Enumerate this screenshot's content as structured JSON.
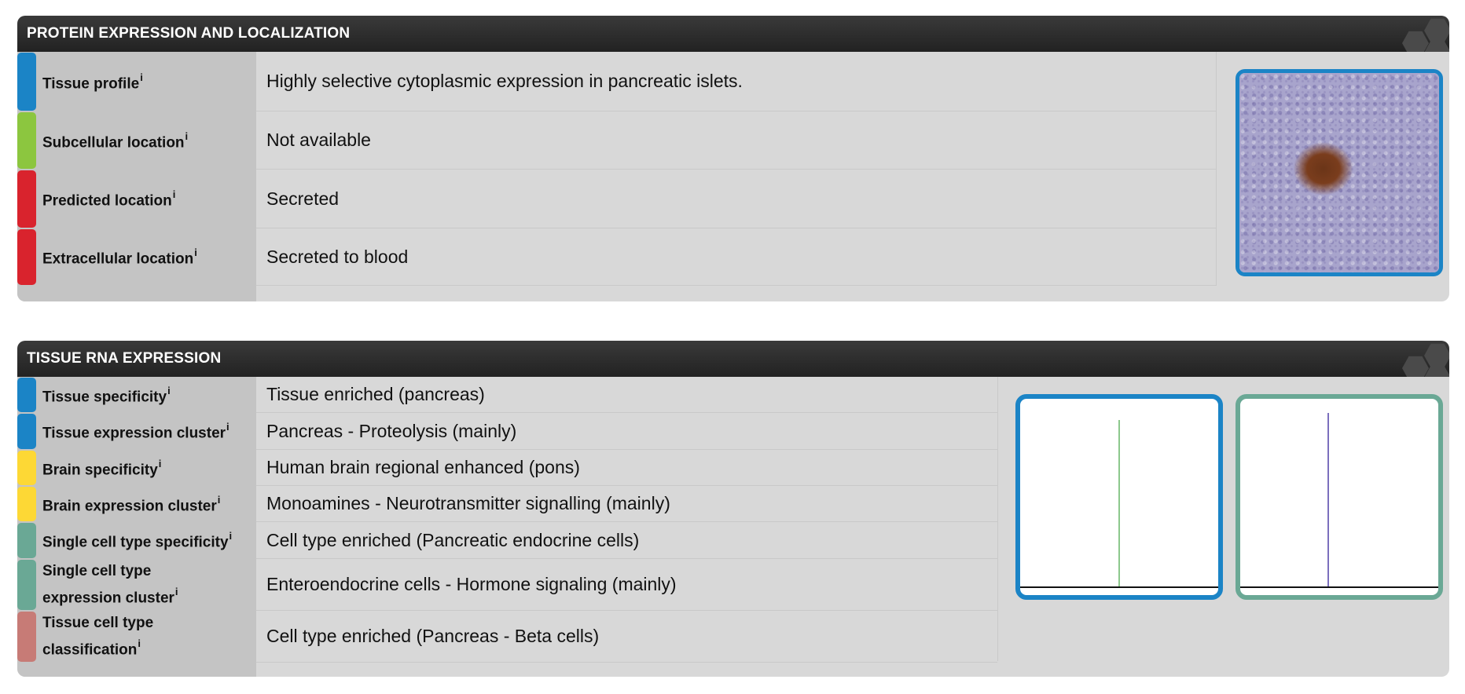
{
  "panels": {
    "protein": {
      "title": "PROTEIN EXPRESSION AND LOCALIZATION",
      "rows": [
        {
          "label": "Tissue profile",
          "info": "i",
          "value": "Highly selective cytoplasmic expression in pancreatic islets.",
          "color": "#1b84c6"
        },
        {
          "label": "Subcellular location",
          "info": "i",
          "value": "Not available",
          "color": "#8cc63f"
        },
        {
          "label": "Predicted location",
          "info": "i",
          "value": "Secreted",
          "color": "#d9232d"
        },
        {
          "label": "Extracellular location",
          "info": "i",
          "value": "Secreted to blood",
          "color": "#d9232d"
        }
      ]
    },
    "rna": {
      "title": "TISSUE RNA EXPRESSION",
      "rows": [
        {
          "label": "Tissue specificity",
          "info": "i",
          "value": "Tissue enriched (pancreas)",
          "color": "#1b84c6"
        },
        {
          "label": "Tissue expression cluster",
          "info": "i",
          "value": "Pancreas - Proteolysis (mainly)",
          "color": "#1b84c6"
        },
        {
          "label": "Brain specificity",
          "info": "i",
          "value": "Human brain regional enhanced (pons)",
          "color": "#fdd835"
        },
        {
          "label": "Brain expression cluster",
          "info": "i",
          "value": "Monoamines - Neurotransmitter signalling (mainly)",
          "color": "#fdd835"
        },
        {
          "label": "Single cell type specificity",
          "info": "i",
          "value": "Cell type enriched (Pancreatic endocrine cells)",
          "color": "#6aa895"
        },
        {
          "label_line1": "Single cell type",
          "label_line2": "expression cluster",
          "info": "i",
          "value": "Enteroendocrine cells - Hormone signaling (mainly)",
          "color": "#6aa895"
        },
        {
          "label_line1": "Tissue cell type",
          "label_line2": "classification",
          "info": "i",
          "value": "Cell type enriched (Pancreas - Beta cells)",
          "color": "#c77b76"
        }
      ]
    }
  },
  "thumbnails": {
    "tissue_chart_color": "#8cc88c",
    "single_cell_chart_color": "#7b6fbd"
  },
  "chart_data": [
    {
      "type": "bar",
      "title": "",
      "note": "Tissue RNA expression thumbnail: single dominant spike",
      "values": [
        1
      ],
      "color": "#8cc88c"
    },
    {
      "type": "bar",
      "title": "",
      "note": "Single cell RNA expression thumbnail: single dominant spike",
      "values": [
        1
      ],
      "color": "#7b6fbd"
    }
  ]
}
